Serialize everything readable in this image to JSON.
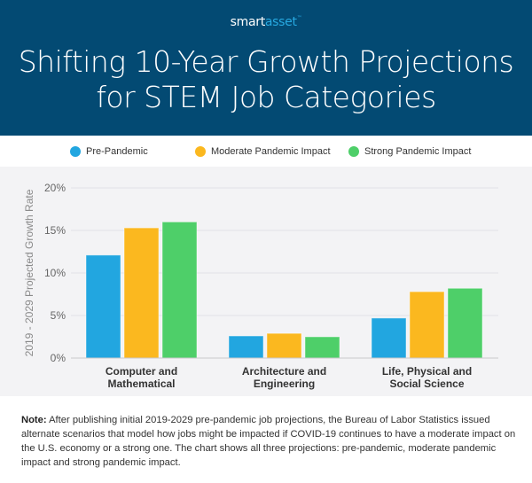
{
  "brand": {
    "part1": "smart",
    "part2": "asset",
    "tm": "™"
  },
  "title": {
    "line1": "Shifting 10-Year Growth Projections",
    "line2": "for STEM Job Categories"
  },
  "colors": {
    "header_bg": "#034a73",
    "pre": "#22a6e0",
    "moderate": "#fbb81f",
    "strong": "#4ecf69",
    "chart_bg": "#f3f3f5"
  },
  "legend": [
    {
      "label": "Pre-Pandemic",
      "color": "#22a6e0"
    },
    {
      "label": "Moderate Pandemic Impact",
      "color": "#fbb81f"
    },
    {
      "label": "Strong Pandemic Impact",
      "color": "#4ecf69"
    }
  ],
  "chart_data": {
    "type": "bar",
    "title": "Shifting 10-Year Growth Projections for STEM Job Categories",
    "xlabel": "",
    "ylabel": "2019 - 2029 Projected Growth Rate",
    "ylim": [
      0,
      20
    ],
    "yticks": [
      0,
      5,
      10,
      15,
      20
    ],
    "ytick_labels": [
      "0%",
      "5%",
      "10%",
      "15%",
      "20%"
    ],
    "grid": true,
    "legend_position": "top",
    "categories": [
      [
        "Computer and",
        "Mathematical"
      ],
      [
        "Architecture and",
        "Engineering"
      ],
      [
        "Life, Physical and",
        "Social Science"
      ]
    ],
    "series": [
      {
        "name": "Pre-Pandemic",
        "color": "#22a6e0",
        "values": [
          12.1,
          2.6,
          4.7
        ]
      },
      {
        "name": "Moderate Pandemic Impact",
        "color": "#fbb81f",
        "values": [
          15.3,
          2.9,
          7.8
        ]
      },
      {
        "name": "Strong Pandemic Impact",
        "color": "#4ecf69",
        "values": [
          16.0,
          2.5,
          8.2
        ]
      }
    ]
  },
  "note": {
    "label": "Note:",
    "text": " After publishing initial 2019-2029 pre-pandemic job projections, the Bureau of Labor Statistics issued alternate scenarios that model how jobs might be impacted if COVID-19 continues to have a moderate impact on the U.S. economy or a strong one. The chart shows all three projections: pre-pandemic, moderate pandemic impact and strong pandemic impact."
  }
}
